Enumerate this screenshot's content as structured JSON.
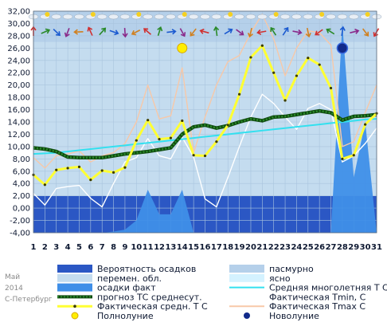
{
  "chart_data": {
    "type": "line",
    "x": [
      1,
      2,
      3,
      4,
      5,
      6,
      7,
      8,
      9,
      10,
      11,
      12,
      13,
      14,
      15,
      16,
      17,
      18,
      19,
      20,
      21,
      22,
      23,
      24,
      25,
      26,
      27,
      28,
      29,
      30,
      31
    ],
    "ylim": [
      -4,
      32
    ],
    "yticks": [
      "-4,00",
      "-2,00",
      "0,00",
      "2,00",
      "4,00",
      "6,00",
      "8,00",
      "10,00",
      "12,00",
      "14,00",
      "16,00",
      "18,00",
      "20,00",
      "22,00",
      "24,00",
      "26,00",
      "28,00",
      "30,00",
      "32,00"
    ],
    "grid": true,
    "colors": {
      "plot_bg": "#c4dcef",
      "cloudy_band": "#b5d0ea",
      "clear_band": "#d4f2ff",
      "precip_prob": "#2b57c4",
      "precip_fact": "#3f8fe8",
      "climate": "#33e0ef",
      "forecast": "#2a8a2a",
      "tavg": "#ffff33",
      "tmin": "#ffffff",
      "tmax": "#f7c8a8",
      "full_moon": "#ffee00",
      "new_moon": "#112a8a"
    },
    "series": [
      {
        "name": "Вероятность осадков",
        "kind": "bar",
        "values": [
          2,
          2,
          2,
          2,
          2,
          2,
          2,
          2,
          2,
          2,
          2,
          2,
          2,
          2,
          2,
          2,
          2,
          2,
          2,
          2,
          2,
          2,
          2,
          2,
          2,
          2,
          2,
          2,
          2,
          2,
          2
        ]
      },
      {
        "name": "осадки факт",
        "kind": "area",
        "values": [
          -4,
          -4,
          -4,
          -4,
          -4,
          -4,
          -4,
          -3.8,
          -3.5,
          -2,
          3,
          -1,
          -1,
          3,
          -4,
          -4,
          -4,
          -4,
          -4,
          -4,
          -4,
          -4,
          -4,
          -4,
          -4,
          -4,
          -4,
          30,
          5,
          14,
          -4
        ]
      },
      {
        "name": "Средняя многолетняя Т С",
        "kind": "line",
        "values": [
          8.8,
          8.9,
          9.0,
          9.2,
          9.4,
          9.6,
          9.8,
          10.0,
          10.2,
          10.4,
          10.6,
          10.8,
          11.0,
          11.2,
          11.4,
          11.6,
          11.8,
          12.0,
          12.2,
          12.4,
          12.6,
          12.8,
          13.0,
          13.2,
          13.4,
          13.6,
          13.8,
          14.0,
          14.2,
          14.4,
          14.5
        ]
      },
      {
        "name": "прогноз ТС среднесут.",
        "kind": "line",
        "values": [
          9.8,
          9.6,
          9.2,
          8.3,
          8.2,
          8.2,
          8.2,
          8.5,
          8.8,
          9.0,
          9.2,
          9.5,
          9.8,
          12.0,
          13.2,
          13.5,
          13.0,
          13.4,
          14.0,
          14.5,
          14.2,
          14.8,
          14.9,
          15.2,
          15.5,
          15.8,
          15.5,
          14.3,
          14.9,
          15.0,
          15.2
        ]
      },
      {
        "name": "Фактическая средн. Т С",
        "kind": "line",
        "values": [
          5.4,
          3.8,
          6.2,
          6.5,
          6.7,
          4.6,
          6.1,
          5.8,
          6.6,
          11.0,
          14.3,
          11.2,
          11.4,
          14.2,
          8.6,
          8.5,
          10.8,
          13.5,
          18.5,
          24.5,
          26.4,
          22.0,
          17.5,
          21.5,
          24.4,
          23.3,
          19.5,
          8.0,
          8.6,
          13.6,
          15.4
        ]
      },
      {
        "name": "Фактическая Tmin, C",
        "kind": "line",
        "values": [
          2.4,
          0.5,
          3.2,
          3.5,
          3.7,
          1.6,
          0.2,
          4.0,
          7.5,
          8.2,
          11.3,
          8.5,
          8.0,
          11.5,
          8.3,
          1.5,
          0.2,
          5.0,
          10.0,
          14.8,
          18.5,
          17.0,
          14.8,
          12.8,
          16.2,
          17.0,
          16.0,
          7.5,
          8.5,
          10.5,
          13.0
        ]
      },
      {
        "name": "Фактическая Tmax С",
        "kind": "line",
        "values": [
          8.2,
          6.5,
          8.5,
          8.8,
          9.3,
          7.5,
          8.5,
          9.0,
          10.5,
          14.0,
          20.0,
          14.5,
          15.0,
          22.8,
          9.0,
          14.8,
          20.0,
          23.8,
          24.8,
          28.5,
          31.5,
          27.5,
          21.5,
          26.0,
          28.8,
          28.5,
          26.5,
          10.0,
          10.8,
          15.5,
          20.0
        ]
      }
    ],
    "moon_events": [
      {
        "name": "Полнолуние",
        "day": 14
      },
      {
        "name": "Новолуние",
        "day": 28
      }
    ],
    "legend": {
      "placement": "bottom",
      "items": [
        {
          "label": "Вероятность осадков",
          "swatch": "box",
          "color": "#2b57c4"
        },
        {
          "label": "пасмурно",
          "swatch": "box",
          "color": "#b5d0ea"
        },
        {
          "label": "перемен. обл.",
          "swatch": "box",
          "color": "#c4dcef"
        },
        {
          "label": "ясно",
          "swatch": "box",
          "color": "#d4f2ff"
        },
        {
          "label": "осадки факт",
          "swatch": "box",
          "color": "#3f8fe8"
        },
        {
          "label": "Средняя многолетняя Т С",
          "swatch": "line",
          "color": "#33e0ef"
        },
        {
          "label": "прогноз ТС среднесут.",
          "swatch": "dotline",
          "color": "#2a8a2a"
        },
        {
          "label": "Фактическая Tmin, C",
          "swatch": "line",
          "color": "#ffffff"
        },
        {
          "label": "Фактическая средн. Т С",
          "swatch": "markline",
          "color": "#ffff33"
        },
        {
          "label": "Фактическая Tmax С",
          "swatch": "line",
          "color": "#f7c8a8"
        },
        {
          "label": "Полнолуние",
          "swatch": "circle",
          "color": "#ffee00"
        },
        {
          "label": "Новолуние",
          "swatch": "hex",
          "color": "#112a8a"
        }
      ]
    },
    "corner_text": [
      "Май",
      "2014",
      "С-Петербург"
    ]
  }
}
